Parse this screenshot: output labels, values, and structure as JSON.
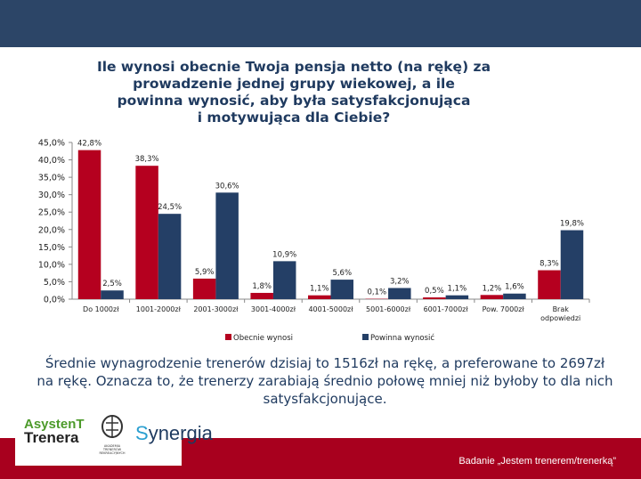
{
  "header": {
    "color": "#2c4567"
  },
  "title_lines": [
    "Ile wynosi obecnie Twoja pensja netto (na rękę) za",
    "prowadzenie jednej grupy wiekowej, a ile",
    "powinna wynosić, aby była satysfakcjonująca",
    "i motywująca dla Ciebie?"
  ],
  "chart_data": {
    "type": "bar",
    "categories": [
      "Do 1000zł",
      "1001-2000zł",
      "2001-3000zł",
      "3001-4000zł",
      "4001-5000zł",
      "5001-6000zł",
      "6001-7000zł",
      "Pow. 7000zł",
      "Brak odpowiedzi"
    ],
    "series": [
      {
        "name": "Obecnie wynosi",
        "color": "#b5001f",
        "values": [
          42.8,
          38.3,
          5.9,
          1.8,
          1.1,
          0.1,
          0.5,
          1.2,
          8.3
        ],
        "labels": [
          "42,8%",
          "38,3%",
          "5,9%",
          "1,8%",
          "1,1%",
          "0,1%",
          "0,5%",
          "1,2%",
          "8,3%"
        ]
      },
      {
        "name": "Powinna wynosić",
        "color": "#243f66",
        "values": [
          2.5,
          24.5,
          30.6,
          10.9,
          5.6,
          3.2,
          1.1,
          1.6,
          19.8
        ],
        "labels": [
          "2,5%",
          "24,5%",
          "30,6%",
          "10,9%",
          "5,6%",
          "3,2%",
          "1,1%",
          "1,6%",
          "19,8%"
        ]
      }
    ],
    "yticks": [
      "0,0%",
      "5,0%",
      "10,0%",
      "15,0%",
      "20,0%",
      "25,0%",
      "30,0%",
      "35,0%",
      "40,0%",
      "45,0%"
    ],
    "ylim": [
      0,
      45
    ],
    "legend": "bottom",
    "grid": false
  },
  "summary": "Średnie wynagrodzenie trenerów dzisiaj to 1516zł na rękę, a preferowane to 2697zł na rękę. Oznacza to, że trenerzy zarabiają średnio połowę mniej niż byłoby to dla nich satysfakcjonujące.",
  "logos": {
    "asystent": "AsystenT Trenera",
    "akademia": "AKADEMIA TRENERÓW REKREACYJNYCH",
    "synergia": "Synergia"
  },
  "footer": {
    "text": "Badanie „Jestem trenerem/trenerką”",
    "color": "#a8001e"
  }
}
